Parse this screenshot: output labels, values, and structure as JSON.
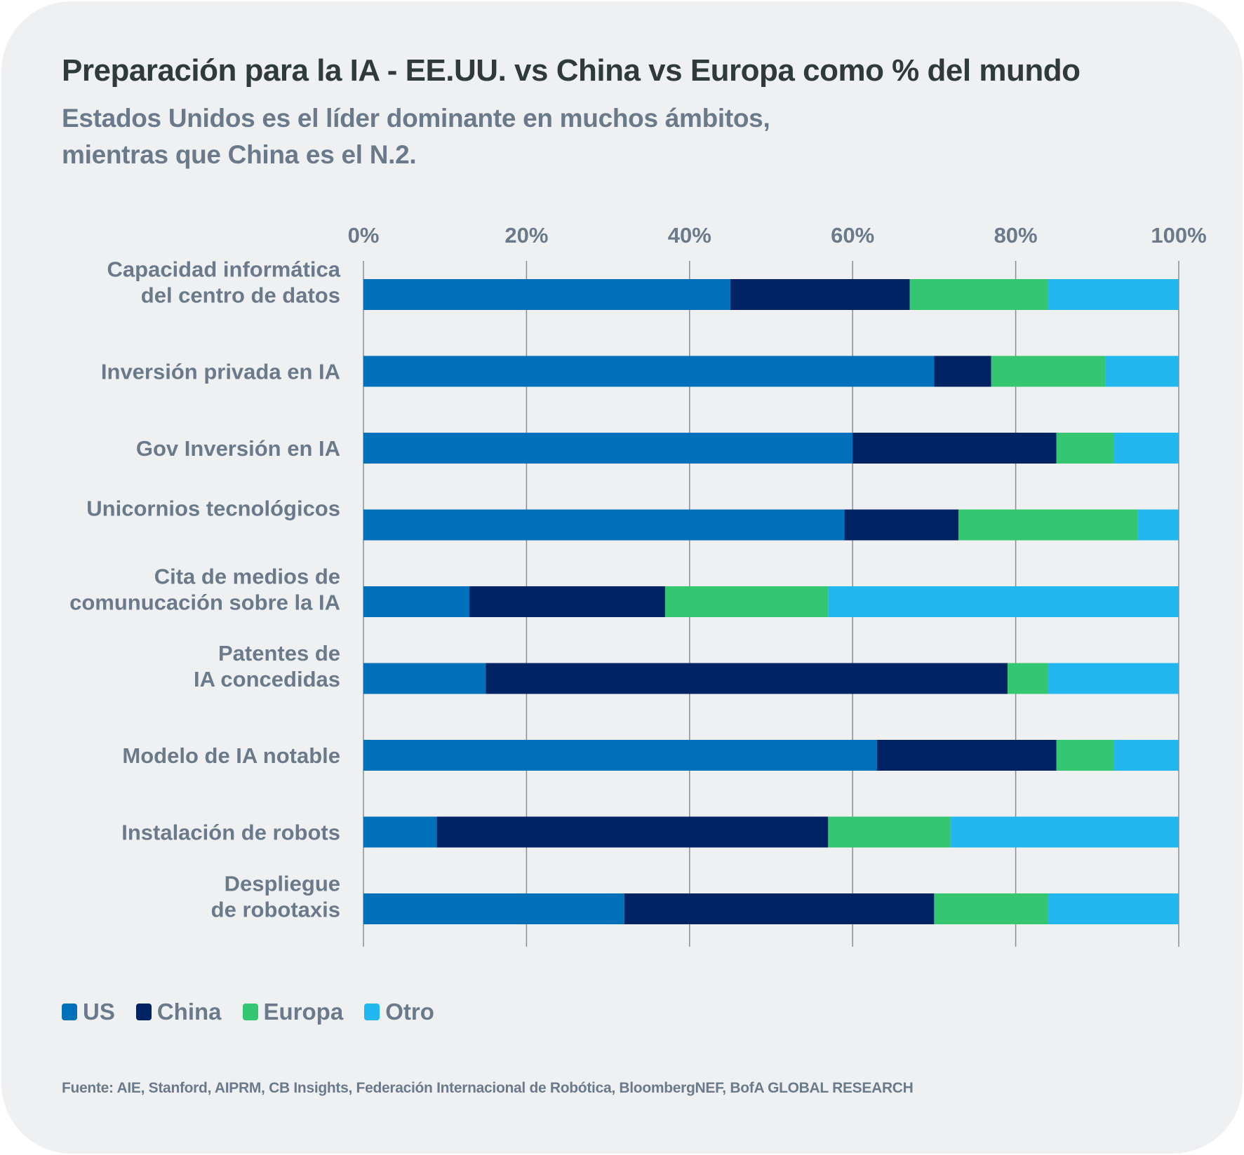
{
  "header": {
    "title": "Preparación para la IA - EE.UU. vs China vs Europa como % del mundo",
    "subtitle_line1": "Estados Unidos es el líder dominante en muchos ámbitos,",
    "subtitle_line2": "mientras que China es el N.2."
  },
  "colors": {
    "US": "#0070ba",
    "China": "#002463",
    "Europa": "#34c670",
    "Otro": "#23b7ef"
  },
  "legend": [
    {
      "name": "US",
      "color": "#0070ba"
    },
    {
      "name": "China",
      "color": "#002463"
    },
    {
      "name": "Europa",
      "color": "#34c670"
    },
    {
      "name": "Otro",
      "color": "#23b7ef"
    }
  ],
  "source": "Fuente: AIE, Stanford, AIPRM, CB Insights, Federación Internacional de Robótica, BloombergNEF, BofA GLOBAL RESEARCH",
  "chart_data": {
    "type": "bar",
    "orientation": "horizontal",
    "stacked": true,
    "title": "Preparación para la IA - EE.UU. vs China vs Europa como % del mundo",
    "subtitle": "Estados Unidos es el líder dominante en muchos ámbitos, mientras que China es el N.2.",
    "xlabel": "",
    "ylabel": "",
    "xlim": [
      0,
      100
    ],
    "x_ticks": [
      "0%",
      "20%",
      "40%",
      "60%",
      "80%",
      "100%"
    ],
    "x_axis_position": "top",
    "grid": true,
    "legend_position": "bottom-left",
    "categories": [
      [
        "Capacidad informática",
        "del centro de datos"
      ],
      [
        "Inversión privada en IA"
      ],
      [
        "Gov Inversión en IA"
      ],
      [
        "Unicornios tecnológicos"
      ],
      [
        "Cita de medios de",
        "comunucación sobre la IA"
      ],
      [
        "Patentes de",
        "IA concedidas"
      ],
      [
        "Modelo de IA notable"
      ],
      [
        "Instalación de robots"
      ],
      [
        "Despliegue",
        "de robotaxis"
      ]
    ],
    "series": [
      {
        "name": "US",
        "values": [
          45,
          70,
          60,
          59,
          13,
          15,
          63,
          9,
          32
        ]
      },
      {
        "name": "China",
        "values": [
          22,
          7,
          25,
          14,
          24,
          64,
          22,
          48,
          38
        ]
      },
      {
        "name": "Europa",
        "values": [
          17,
          14,
          7,
          22,
          20,
          5,
          7,
          15,
          14
        ]
      },
      {
        "name": "Otro",
        "values": [
          16,
          9,
          8,
          5,
          43,
          16,
          8,
          28,
          16
        ]
      }
    ]
  }
}
